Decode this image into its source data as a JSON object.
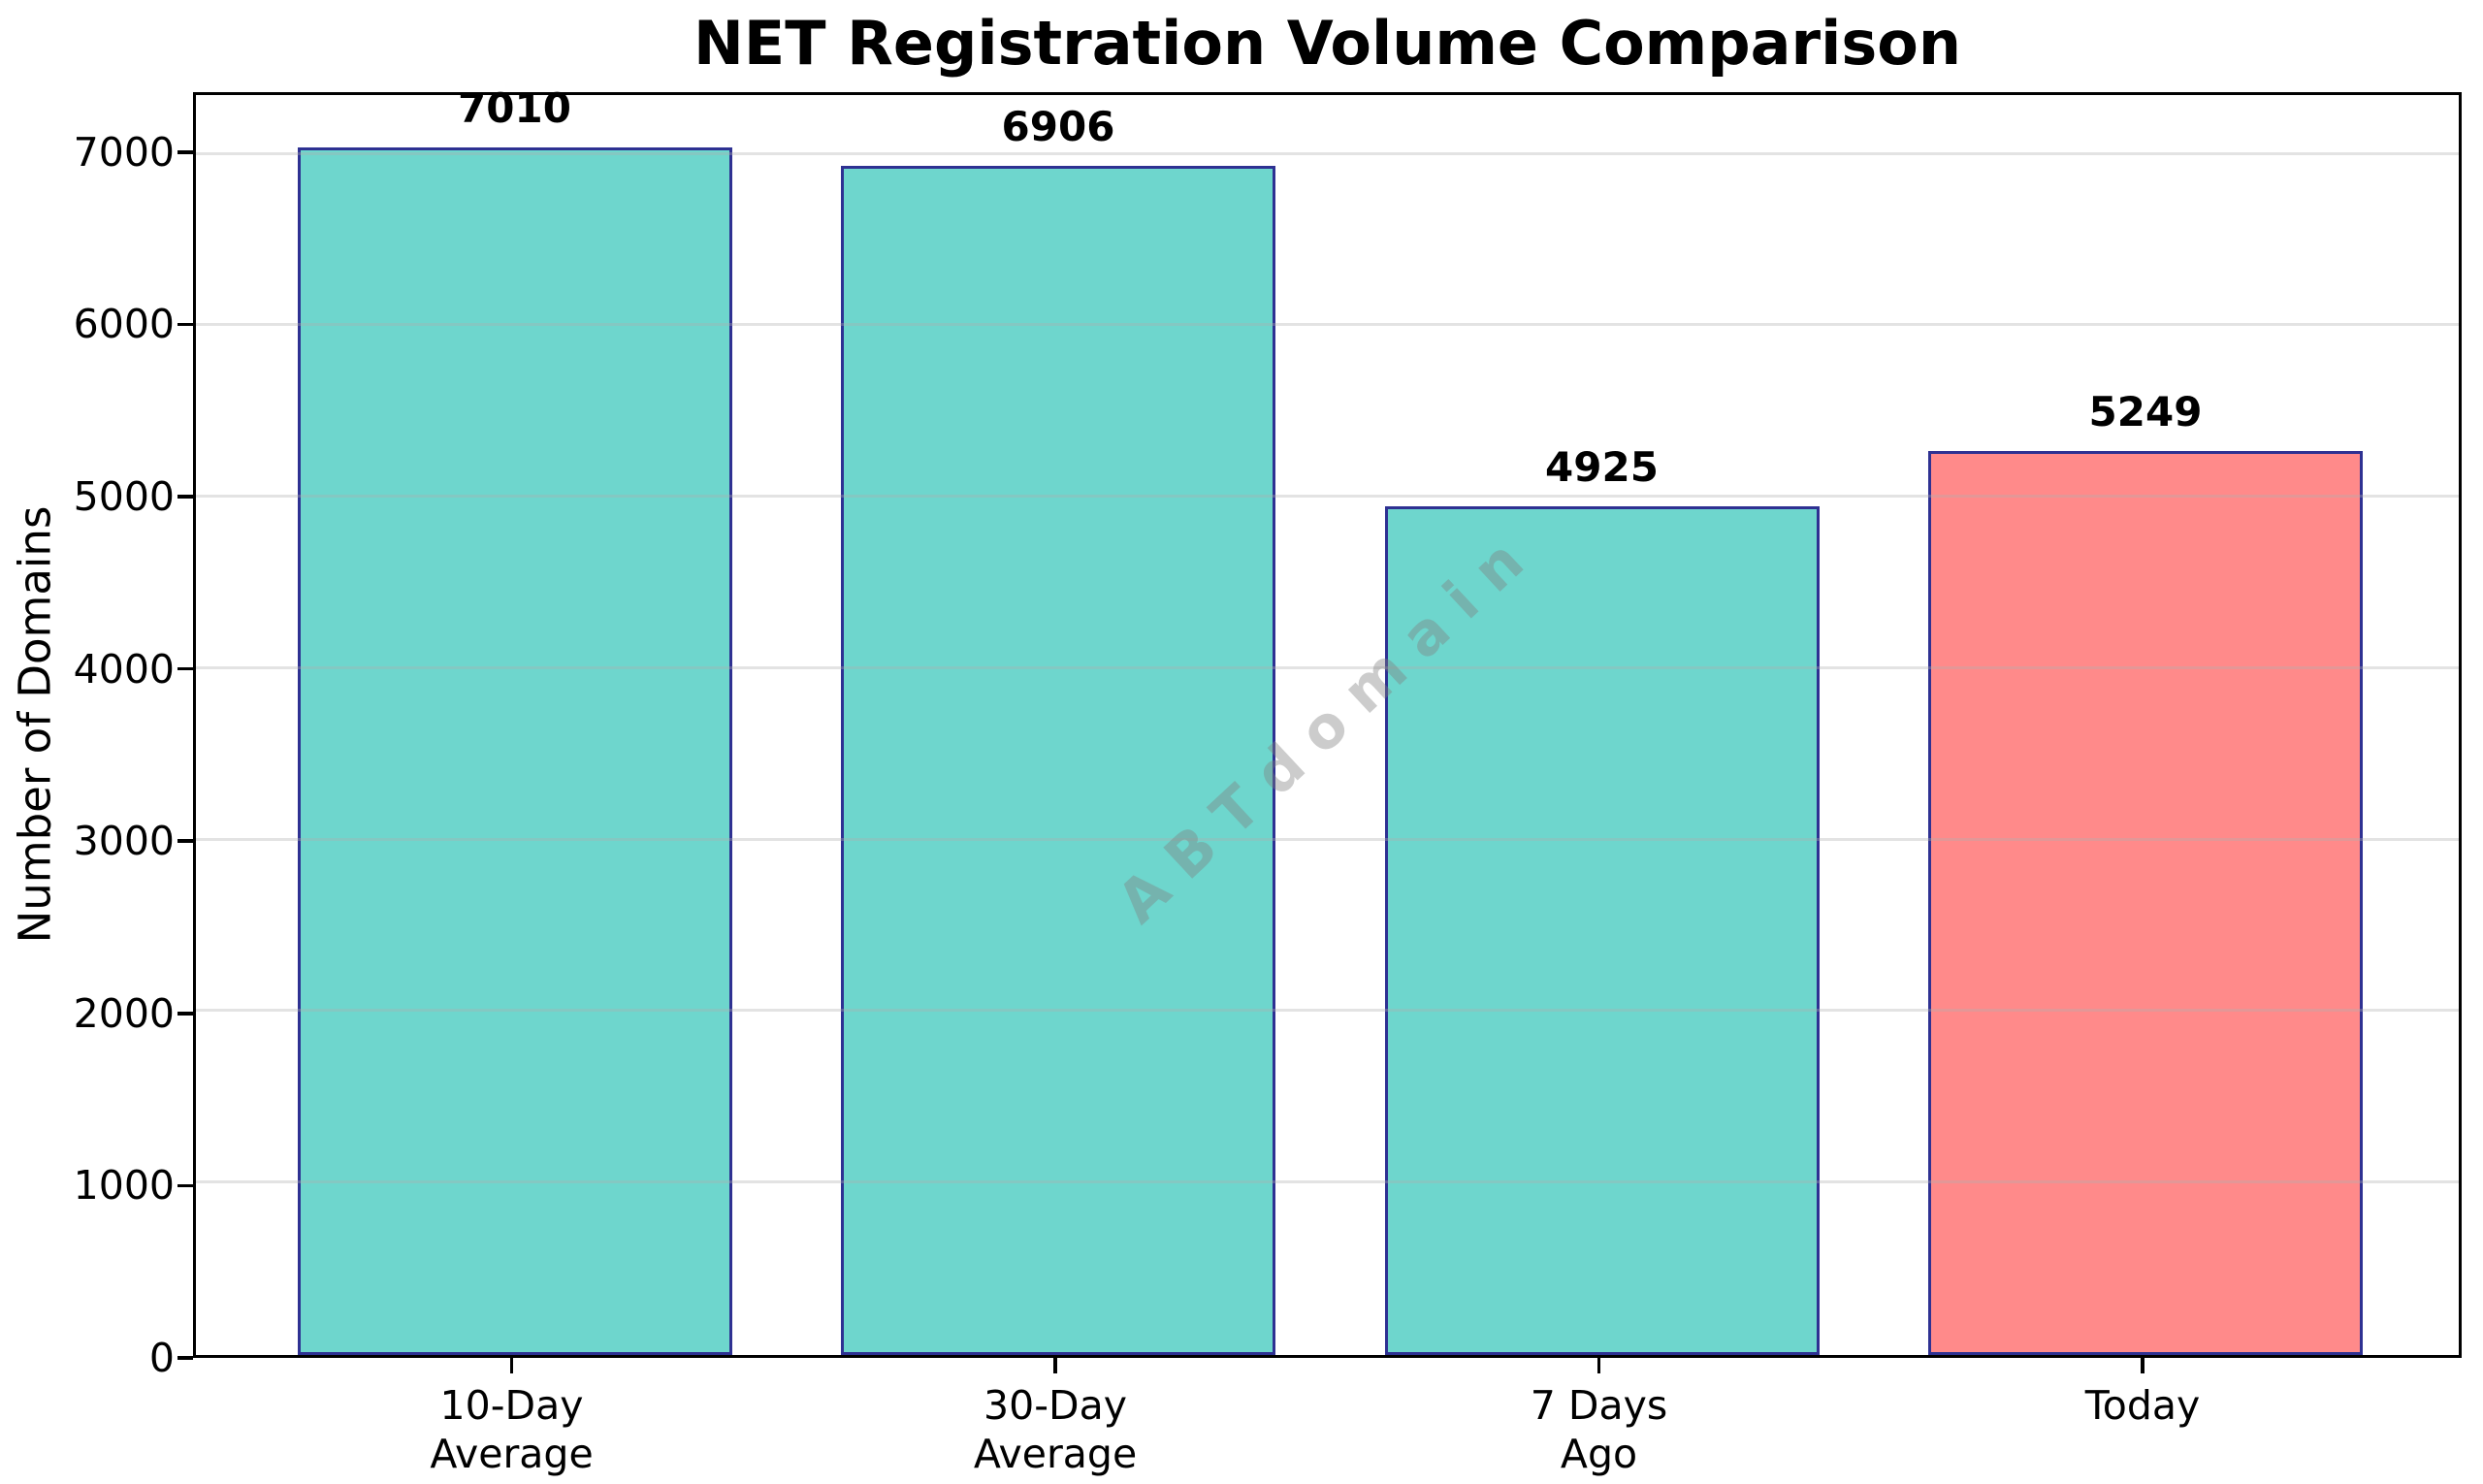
{
  "chart_data": {
    "type": "bar",
    "title": "NET Registration Volume Comparison",
    "ylabel": "Number of Domains",
    "xlabel": "",
    "categories": [
      "10-Day\nAverage",
      "30-Day\nAverage",
      "7 Days\nAgo",
      "Today"
    ],
    "values": [
      7010,
      6906,
      4925,
      5249
    ],
    "value_labels": [
      "7010",
      "6906",
      "4925",
      "5249"
    ],
    "yticks": [
      0,
      1000,
      2000,
      3000,
      4000,
      5000,
      6000,
      7000
    ],
    "ylim": [
      0,
      7348
    ],
    "grid": true,
    "legend_position": "none",
    "watermark": "ABTdomain",
    "colors": {
      "bar_fills": [
        "#6ed6cd",
        "#6ed6cd",
        "#6ed6cd",
        "#ff8a8a"
      ],
      "bar_edge": "#2e3192",
      "gridline": "rgba(176,176,176,0.35)",
      "watermark": "rgba(128,128,128,0.40)",
      "axis": "#000000",
      "text": "#000000",
      "background": "#ffffff"
    }
  }
}
